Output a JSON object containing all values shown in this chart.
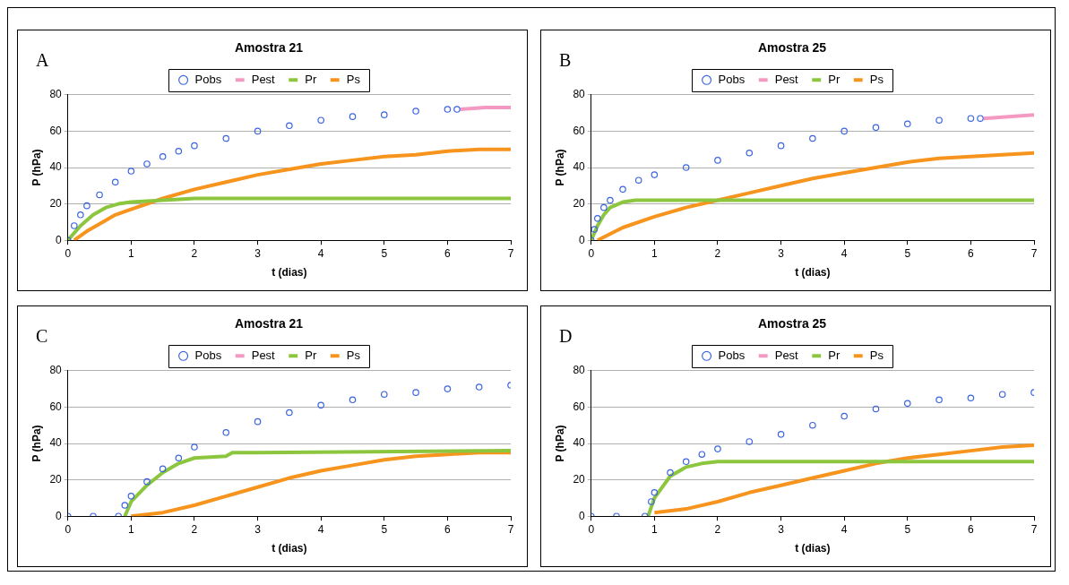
{
  "chart_data": [
    {
      "type": "line",
      "title": "Amostra 21",
      "annotations": [
        "A"
      ],
      "xlabel": "t (dias)",
      "ylabel": "P (hPa)",
      "xlim": [
        0,
        7
      ],
      "xticks": [
        0,
        1,
        2,
        3,
        4,
        5,
        6,
        7
      ],
      "ylim": [
        0,
        80
      ],
      "yticks": [
        0,
        20,
        40,
        60,
        80
      ],
      "grid": "y",
      "legend": "top",
      "series": [
        {
          "name": "Pobs",
          "type": "scatter",
          "marker": "circle",
          "color": "#3a64e0",
          "x": [
            0,
            0.1,
            0.2,
            0.3,
            0.5,
            0.75,
            1,
            1.25,
            1.5,
            1.75,
            2,
            2.5,
            3,
            3.5,
            4,
            4.5,
            5,
            5.5,
            6,
            6.15
          ],
          "values": [
            0,
            8,
            14,
            19,
            25,
            32,
            38,
            42,
            46,
            49,
            52,
            56,
            60,
            63,
            66,
            68,
            69,
            71,
            72,
            72
          ]
        },
        {
          "name": "Pest",
          "type": "line",
          "marker": "none",
          "color": "#f49ac2",
          "x": [
            6.2,
            6.6,
            7
          ],
          "values": [
            72,
            73,
            73
          ]
        },
        {
          "name": "Pr",
          "type": "line",
          "marker": "none",
          "color": "#8cc63f",
          "x": [
            0,
            0.2,
            0.4,
            0.6,
            0.8,
            1,
            1.5,
            2,
            7
          ],
          "values": [
            0,
            8,
            14,
            18,
            20,
            21,
            22,
            23,
            23
          ]
        },
        {
          "name": "Ps",
          "type": "line",
          "marker": "none",
          "color": "#f7941d",
          "x": [
            0.1,
            0.3,
            0.5,
            0.75,
            1,
            1.5,
            2,
            2.5,
            3,
            3.5,
            4,
            4.5,
            5,
            5.5,
            6,
            6.5,
            7
          ],
          "values": [
            0,
            5,
            9,
            14,
            17,
            23,
            28,
            32,
            36,
            39,
            42,
            44,
            46,
            47,
            49,
            50,
            50
          ]
        }
      ]
    },
    {
      "type": "line",
      "title": "Amostra 25",
      "annotations": [
        "B"
      ],
      "xlabel": "t (dias)",
      "ylabel": "P (hPa)",
      "xlim": [
        0,
        7
      ],
      "xticks": [
        0,
        1,
        2,
        3,
        4,
        5,
        6,
        7
      ],
      "ylim": [
        0,
        80
      ],
      "yticks": [
        0,
        20,
        40,
        60,
        80
      ],
      "grid": "y",
      "legend": "top",
      "series": [
        {
          "name": "Pobs",
          "type": "scatter",
          "marker": "circle",
          "color": "#3a64e0",
          "x": [
            0,
            0.05,
            0.1,
            0.2,
            0.3,
            0.5,
            0.75,
            1,
            1.5,
            2,
            2.5,
            3,
            3.5,
            4,
            4.5,
            5,
            5.5,
            6,
            6.15
          ],
          "values": [
            0,
            6,
            12,
            18,
            22,
            28,
            33,
            36,
            40,
            44,
            48,
            52,
            56,
            60,
            62,
            64,
            66,
            67,
            67
          ]
        },
        {
          "name": "Pest",
          "type": "line",
          "marker": "none",
          "color": "#f49ac2",
          "x": [
            6.2,
            6.6,
            7
          ],
          "values": [
            67,
            68,
            69
          ]
        },
        {
          "name": "Pr",
          "type": "line",
          "marker": "none",
          "color": "#8cc63f",
          "x": [
            0,
            0.1,
            0.2,
            0.3,
            0.5,
            0.7,
            1,
            7
          ],
          "values": [
            0,
            8,
            14,
            18,
            21,
            22,
            22,
            22
          ]
        },
        {
          "name": "Ps",
          "type": "line",
          "marker": "none",
          "color": "#f7941d",
          "x": [
            0.1,
            0.5,
            1,
            1.5,
            2,
            2.5,
            3,
            3.5,
            4,
            4.5,
            5,
            5.5,
            6,
            6.5,
            7
          ],
          "values": [
            0,
            7,
            13,
            18,
            22,
            26,
            30,
            34,
            37,
            40,
            43,
            45,
            46,
            47,
            48
          ]
        }
      ]
    },
    {
      "type": "line",
      "title": "Amostra 21",
      "annotations": [
        "C"
      ],
      "xlabel": "t (dias)",
      "ylabel": "P (hPa)",
      "xlim": [
        0,
        7
      ],
      "xticks": [
        0,
        1,
        2,
        3,
        4,
        5,
        6,
        7
      ],
      "ylim": [
        0,
        80
      ],
      "yticks": [
        0,
        20,
        40,
        60,
        80
      ],
      "grid": "y",
      "legend": "top",
      "series": [
        {
          "name": "Pobs",
          "type": "scatter",
          "marker": "circle",
          "color": "#3a64e0",
          "x": [
            0,
            0.4,
            0.8,
            0.9,
            1,
            1.25,
            1.5,
            1.75,
            2,
            2.5,
            3,
            3.5,
            4,
            4.5,
            5,
            5.5,
            6,
            6.5,
            7
          ],
          "values": [
            0,
            0,
            0,
            6,
            11,
            19,
            26,
            32,
            38,
            46,
            52,
            57,
            61,
            64,
            67,
            68,
            70,
            71,
            72
          ]
        },
        {
          "name": "Pest",
          "type": "line",
          "marker": "none",
          "color": "#f49ac2"
        },
        {
          "name": "Pr",
          "type": "line",
          "marker": "none",
          "color": "#8cc63f",
          "x": [
            0.9,
            1,
            1.25,
            1.5,
            1.75,
            2,
            2.5,
            2.6,
            3,
            7
          ],
          "values": [
            0,
            8,
            17,
            24,
            29,
            32,
            33,
            35,
            35,
            36
          ]
        },
        {
          "name": "Ps",
          "type": "line",
          "marker": "none",
          "color": "#f7941d",
          "x": [
            1,
            1.5,
            2,
            2.5,
            3,
            3.5,
            4,
            4.5,
            5,
            5.5,
            6,
            6.5,
            7
          ],
          "values": [
            0,
            2,
            6,
            11,
            16,
            21,
            25,
            28,
            31,
            33,
            34,
            35,
            35
          ]
        }
      ]
    },
    {
      "type": "line",
      "title": "Amostra 25",
      "annotations": [
        "D"
      ],
      "xlabel": "t (dias)",
      "ylabel": "P (hPa)",
      "xlim": [
        0,
        7
      ],
      "xticks": [
        0,
        1,
        2,
        3,
        4,
        5,
        6,
        7
      ],
      "ylim": [
        0,
        80
      ],
      "yticks": [
        0,
        20,
        40,
        60,
        80
      ],
      "grid": "y",
      "legend": "top",
      "series": [
        {
          "name": "Pobs",
          "type": "scatter",
          "marker": "circle",
          "color": "#3a64e0",
          "x": [
            0,
            0.4,
            0.85,
            0.95,
            1,
            1.25,
            1.5,
            1.75,
            2,
            2.5,
            3,
            3.5,
            4,
            4.5,
            5,
            5.5,
            6,
            6.5,
            7
          ],
          "values": [
            0,
            0,
            0,
            8,
            13,
            24,
            30,
            34,
            37,
            41,
            45,
            50,
            55,
            59,
            62,
            64,
            65,
            67,
            68
          ]
        },
        {
          "name": "Pest",
          "type": "line",
          "marker": "none",
          "color": "#f49ac2"
        },
        {
          "name": "Pr",
          "type": "line",
          "marker": "none",
          "color": "#8cc63f",
          "x": [
            0.9,
            1,
            1.25,
            1.5,
            1.75,
            2,
            7
          ],
          "values": [
            0,
            10,
            22,
            27,
            29,
            30,
            30
          ]
        },
        {
          "name": "Ps",
          "type": "line",
          "marker": "none",
          "color": "#f7941d",
          "x": [
            1,
            1.5,
            2,
            2.5,
            3,
            3.5,
            4,
            4.5,
            5,
            5.5,
            6,
            6.5,
            7
          ],
          "values": [
            2,
            4,
            8,
            13,
            17,
            21,
            25,
            29,
            32,
            34,
            36,
            38,
            39
          ]
        }
      ]
    }
  ]
}
